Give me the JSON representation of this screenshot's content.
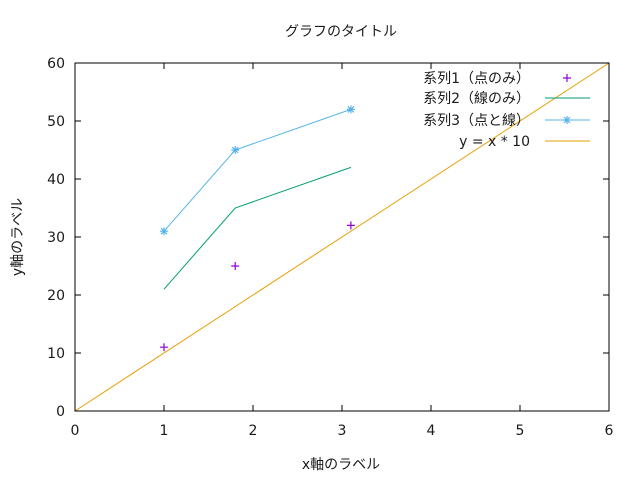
{
  "chart_data": {
    "type": "line",
    "title": "グラフのタイトル",
    "xlabel": "x軸のラベル",
    "ylabel": "y軸のラベル",
    "xlim": [
      0,
      6
    ],
    "ylim": [
      0,
      60
    ],
    "xticks": [
      0,
      1,
      2,
      3,
      4,
      5,
      6
    ],
    "yticks": [
      0,
      10,
      20,
      30,
      40,
      50,
      60
    ],
    "grid": false,
    "legend_position": "top-right",
    "series": [
      {
        "name": "系列1（点のみ）",
        "style": "points",
        "marker": "plus",
        "color": "#9400D3",
        "x": [
          1,
          1.8,
          3.1
        ],
        "y": [
          11,
          25,
          32
        ]
      },
      {
        "name": "系列2（線のみ）",
        "style": "lines",
        "color": "#009E73",
        "x": [
          1,
          1.8,
          3.1
        ],
        "y": [
          21,
          35,
          42
        ]
      },
      {
        "name": "系列3（点と線）",
        "style": "linespoints",
        "marker": "asterisk",
        "color": "#56B4E9",
        "x": [
          1,
          1.8,
          3.1
        ],
        "y": [
          31,
          45,
          52
        ]
      },
      {
        "name": "y = x * 10",
        "style": "function",
        "expression": "x*10",
        "color": "#E69F00",
        "x": [
          0,
          6
        ],
        "y": [
          0,
          60
        ]
      }
    ]
  }
}
